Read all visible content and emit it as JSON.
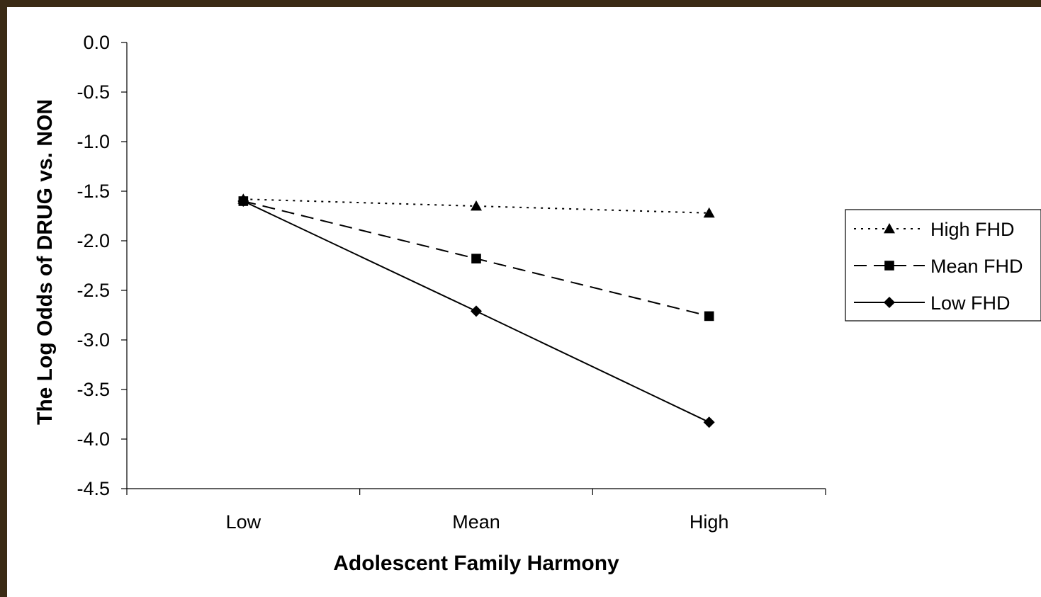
{
  "chart_data": {
    "type": "line",
    "title": "",
    "xlabel": "Adolescent Family Harmony",
    "ylabel": "The Log Odds of DRUG vs. NON",
    "categories": [
      "Low",
      "Mean",
      "High"
    ],
    "ylim": [
      -4.5,
      0.0
    ],
    "yticks": [
      "0.0",
      "-0.5",
      "-1.0",
      "-1.5",
      "-2.0",
      "-2.5",
      "-3.0",
      "-3.5",
      "-4.0",
      "-4.5"
    ],
    "grid": false,
    "legend_position": "right",
    "series": [
      {
        "name": "High FHD",
        "values": [
          -1.58,
          -1.65,
          -1.72
        ],
        "marker": "triangle",
        "line_style": "dotted",
        "color": "#000000"
      },
      {
        "name": "Mean FHD",
        "values": [
          -1.6,
          -2.18,
          -2.76
        ],
        "marker": "square",
        "line_style": "dashed",
        "color": "#000000"
      },
      {
        "name": "Low FHD",
        "values": [
          -1.6,
          -2.71,
          -3.83
        ],
        "marker": "diamond",
        "line_style": "solid",
        "color": "#000000"
      }
    ]
  }
}
